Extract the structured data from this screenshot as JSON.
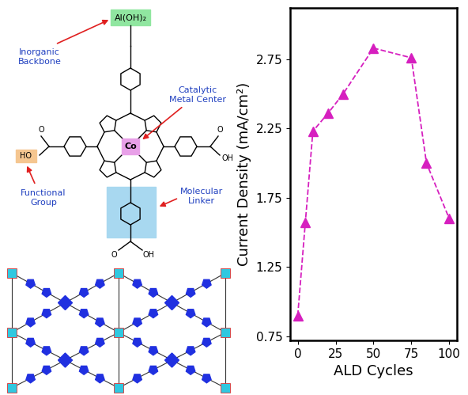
{
  "chart_data": {
    "type": "line",
    "title": null,
    "x_label": "ALD Cycles",
    "y_label": "Current Density (mA/cm²)",
    "x": [
      0,
      5,
      10,
      20,
      30,
      50,
      75,
      85,
      100
    ],
    "values": [
      0.9,
      1.57,
      2.23,
      2.36,
      2.5,
      2.83,
      2.76,
      2.0,
      1.6
    ],
    "color": "#d61fbf",
    "marker": "^",
    "line_style": "dashed",
    "xlim": [
      -5,
      105
    ],
    "xticks": [
      0,
      25,
      50,
      75,
      100
    ],
    "ylim": [
      0.72,
      3.12
    ],
    "yticks": [
      0.75,
      1.25,
      1.75,
      2.25,
      2.75
    ],
    "grid": false
  },
  "diagram": {
    "callouts": {
      "backbone": "Inorganic\nBackbone",
      "metal": "Catalytic\nMetal Center",
      "functional": "Functional\nGroup",
      "linker": "Molecular\nLinker"
    },
    "atoms": {
      "backbone": "Al(OH)₂",
      "metal": "Co",
      "functional": "HO",
      "acid": "OH",
      "carbonyl": "O"
    }
  }
}
